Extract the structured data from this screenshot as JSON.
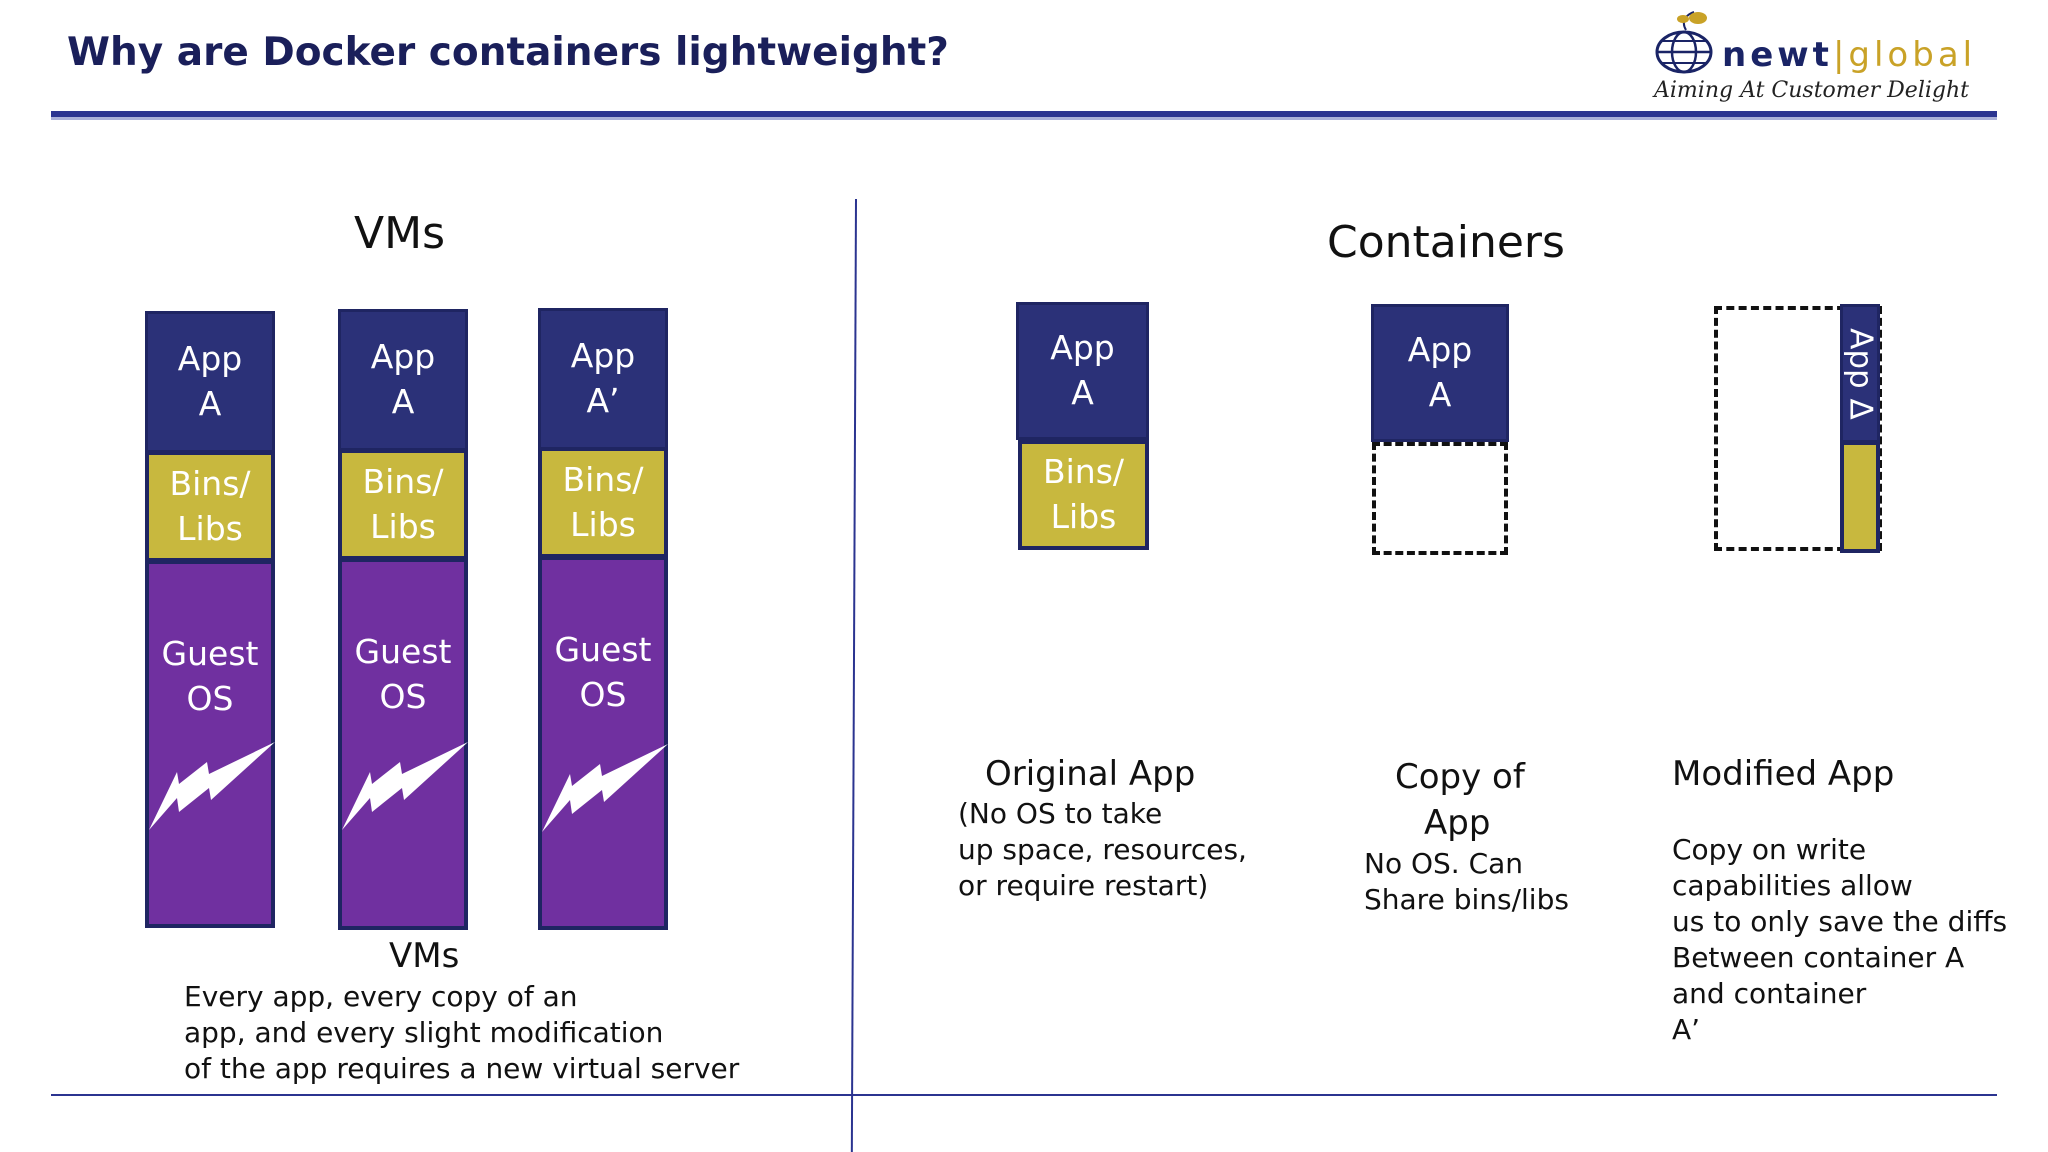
{
  "header": {
    "title": "Why are Docker containers lightweight?",
    "logo": {
      "brand_part1": "newt",
      "separator": "|",
      "brand_part2": "global",
      "tagline": "Aiming At Customer Delight",
      "icon": "globe-icon"
    }
  },
  "vms": {
    "title": "VMs",
    "stacks": [
      {
        "app_line1": "App",
        "app_line2": "A",
        "bins_line1": "Bins/",
        "bins_line2": "Libs",
        "os_line1": "Guest",
        "os_line2": "OS"
      },
      {
        "app_line1": "App",
        "app_line2": "A",
        "bins_line1": "Bins/",
        "bins_line2": "Libs",
        "os_line1": "Guest",
        "os_line2": "OS"
      },
      {
        "app_line1": "App",
        "app_line2": "A’",
        "bins_line1": "Bins/",
        "bins_line2": "Libs",
        "os_line1": "Guest",
        "os_line2": "OS"
      }
    ],
    "caption_title": "VMs",
    "caption_lines": [
      "Every app, every copy of an",
      "app, and every slight modification",
      "of the app requires a new virtual server"
    ]
  },
  "containers": {
    "title": "Containers",
    "original": {
      "app_line1": "App",
      "app_line2": "A",
      "bins_line1": "Bins/",
      "bins_line2": "Libs",
      "heading": "Original App",
      "lines": [
        "(No OS to take",
        "up space, resources,",
        "or require restart)"
      ]
    },
    "copy": {
      "app_line1": "App",
      "app_line2": "A",
      "heading_line1": "Copy of",
      "heading_line2": "App",
      "lines": [
        "No OS. Can",
        "Share bins/libs"
      ]
    },
    "modified": {
      "app_label": "App Δ",
      "heading": "Modified App",
      "lines": [
        "Copy on write",
        "capabilities allow",
        "us to only save the diffs",
        "Between container A",
        "and container",
        "A’"
      ]
    }
  },
  "colors": {
    "app": "#2b3178",
    "bins": "#c8b83e",
    "guest_os": "#7030a0",
    "rule": "#2b3490",
    "bolt": "#ffffff"
  }
}
